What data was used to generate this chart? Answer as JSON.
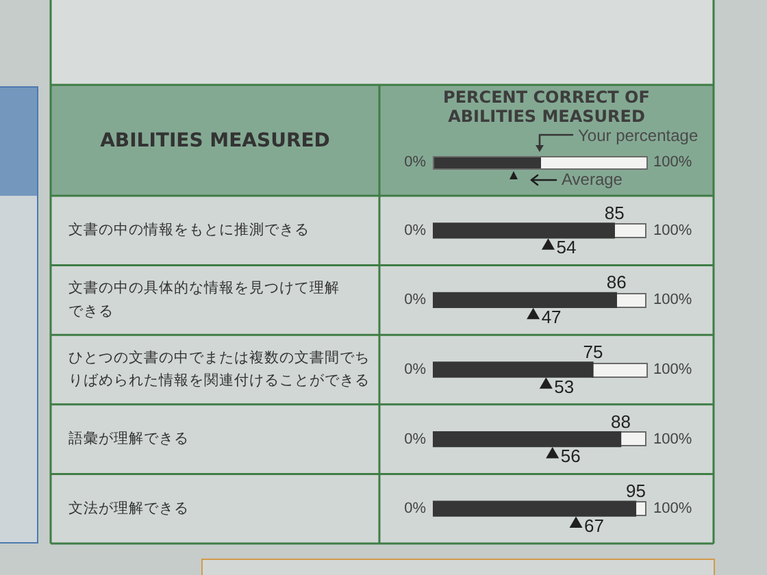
{
  "chart_data": {
    "type": "bar",
    "orientation": "horizontal",
    "title": "PERCENT CORRECT OF ABILITIES MEASURED",
    "ylabel": "ABILITIES MEASURED",
    "categories": [
      "文書の中の情報をもとに推測できる",
      "文書の中の具体的な情報を見つけて理解できる",
      "ひとつの文書の中でまたは複数の文書間でちりばめられた情報を関連付けることができる",
      "語彙が理解できる",
      "文法が理解できる"
    ],
    "series": [
      {
        "name": "Your percentage",
        "color": "#363636",
        "values": [
          85,
          86,
          75,
          88,
          95
        ]
      },
      {
        "name": "Average",
        "type": "scatter",
        "color": "#1f1f1f",
        "values": [
          54,
          47,
          53,
          56,
          67
        ]
      }
    ],
    "xlim": [
      0,
      100
    ],
    "annotations": [
      "0%",
      "100%"
    ],
    "marker": "triangle",
    "data_labels": true,
    "legend": "top"
  }
}
